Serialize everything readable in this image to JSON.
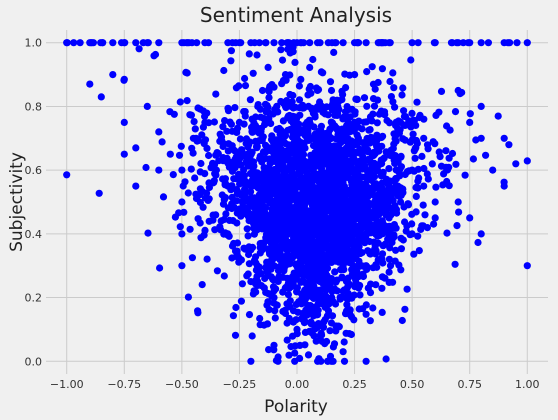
{
  "chart_data": {
    "type": "scatter",
    "title": "Sentiment Analysis",
    "xlabel": "Polarity",
    "ylabel": "Subjectivity",
    "xlim": [
      -1.09,
      1.09
    ],
    "ylim": [
      -0.04,
      1.04
    ],
    "xticks": [
      -1.0,
      -0.75,
      -0.5,
      -0.25,
      0.0,
      0.25,
      0.5,
      0.75,
      1.0
    ],
    "xtick_labels": [
      "−1.00",
      "−0.75",
      "−0.50",
      "−0.25",
      "0.00",
      "0.25",
      "0.50",
      "0.75",
      "1.00"
    ],
    "yticks": [
      0.0,
      0.2,
      0.4,
      0.6,
      0.8,
      1.0
    ],
    "ytick_labels": [
      "0.0",
      "0.2",
      "0.4",
      "0.6",
      "0.8",
      "1.0"
    ],
    "grid": true,
    "legend": "none",
    "marker_color": "#0000ff",
    "background_color": "#f0f0f0",
    "series": [
      {
        "x": [
          -1.0,
          -0.9,
          -0.8,
          -0.75,
          -0.7,
          -0.6,
          -0.5,
          -0.4,
          -0.3,
          -0.25,
          -0.2,
          -0.1,
          0.0,
          0.1,
          0.2,
          0.25,
          0.3,
          0.4,
          0.5,
          0.6,
          0.7,
          0.75,
          0.8,
          0.9,
          1.0,
          -0.9,
          -0.85,
          -0.8,
          -0.75,
          -0.7,
          -0.65,
          -0.6,
          -0.55,
          -0.5,
          -0.45,
          -0.4,
          -0.6,
          -0.7,
          -0.75,
          -0.5,
          -0.5,
          -0.5,
          0.7,
          0.75,
          0.8,
          0.8,
          0.85,
          0.9,
          0.92,
          0.95,
          0.75,
          0.8,
          0.7,
          0.9,
          1.0,
          -0.2,
          -0.1,
          0.0,
          0.05,
          0.1,
          0.15,
          0.2,
          0.3,
          -0.05,
          0.08,
          -0.35,
          -0.3,
          -0.25,
          -0.2,
          -0.15,
          -0.1,
          -0.05,
          0.0,
          0.05,
          0.1,
          0.15,
          0.2,
          0.25,
          0.3,
          0.35,
          0.4,
          0.45,
          0.5,
          0.55,
          0.6,
          0.65,
          -0.3,
          -0.2,
          -0.1,
          0.0,
          0.1,
          0.2,
          0.3,
          0.4,
          0.5,
          0.6,
          -0.25,
          -0.15,
          -0.05,
          0.05,
          0.15,
          0.25,
          0.35,
          0.45,
          0.55,
          -0.2,
          -0.1,
          0.0,
          0.1,
          0.2,
          0.3,
          0.4,
          -0.15,
          -0.05,
          0.05,
          0.15,
          0.25,
          0.35,
          -0.1,
          0.0,
          0.1,
          0.2
        ],
        "y": [
          1.0,
          1.0,
          1.0,
          1.0,
          1.0,
          1.0,
          1.0,
          1.0,
          1.0,
          1.0,
          1.0,
          1.0,
          1.0,
          1.0,
          1.0,
          1.0,
          1.0,
          1.0,
          1.0,
          1.0,
          1.0,
          1.0,
          1.0,
          1.0,
          1.0,
          0.87,
          0.83,
          0.9,
          0.75,
          0.67,
          0.8,
          0.72,
          0.65,
          0.6,
          0.7,
          0.75,
          0.6,
          0.55,
          0.65,
          0.5,
          0.4,
          0.3,
          0.85,
          0.75,
          0.7,
          0.4,
          0.6,
          0.7,
          0.68,
          0.62,
          0.45,
          0.8,
          0.5,
          0.55,
          0.3,
          0.0,
          0.05,
          0.1,
          0.02,
          0.08,
          0.12,
          0.03,
          0.0,
          0.15,
          0.2,
          0.6,
          0.55,
          0.62,
          0.5,
          0.58,
          0.48,
          0.6,
          0.5,
          0.45,
          0.52,
          0.6,
          0.55,
          0.5,
          0.58,
          0.6,
          0.55,
          0.5,
          0.6,
          0.55,
          0.5,
          0.6,
          0.4,
          0.35,
          0.3,
          0.4,
          0.35,
          0.3,
          0.4,
          0.45,
          0.4,
          0.45,
          0.75,
          0.7,
          0.8,
          0.75,
          0.7,
          0.75,
          0.7,
          0.75,
          0.7,
          0.25,
          0.2,
          0.3,
          0.25,
          0.22,
          0.3,
          0.28,
          0.85,
          0.9,
          0.8,
          0.85,
          0.9,
          0.82,
          0.65,
          0.68,
          0.66,
          0.64
        ]
      }
    ]
  }
}
